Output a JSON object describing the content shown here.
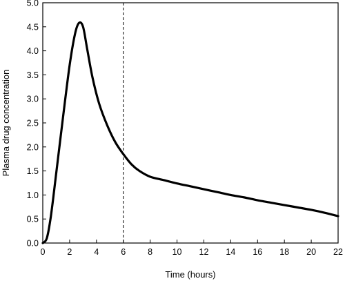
{
  "chart_data": {
    "type": "line",
    "title": "",
    "xlabel": "Time (hours)",
    "ylabel": "Plasma drug concentration",
    "xlim": [
      0,
      22
    ],
    "ylim": [
      0,
      5
    ],
    "xticks": [
      0,
      2,
      4,
      6,
      8,
      10,
      12,
      14,
      16,
      18,
      20,
      22
    ],
    "xtick_labels": [
      "0",
      "2",
      "4",
      "6",
      "8",
      "10",
      "12",
      "14",
      "16",
      "18",
      "20",
      "22"
    ],
    "yticks": [
      0,
      0.5,
      1,
      1.5,
      2,
      2.5,
      3,
      3.5,
      4,
      4.5,
      5
    ],
    "ytick_labels": [
      "0.0",
      "0.5",
      "1.0",
      "1.5",
      "2.0",
      "2.5",
      "3.0",
      "3.5",
      "4.0",
      "4.5",
      "5.0"
    ],
    "grid": false,
    "series": [
      {
        "x": [
          0,
          0.3,
          0.6,
          1.0,
          1.5,
          2.0,
          2.4,
          2.7,
          3.0,
          3.3,
          3.7,
          4.2,
          4.8,
          5.4,
          6.0,
          6.6,
          7.2,
          8.0,
          9.0,
          10.0,
          11.0,
          12.0,
          13.0,
          14.0,
          15.0,
          16.0,
          17.0,
          18.0,
          19.0,
          20.0,
          21.0,
          22.0
        ],
        "y": [
          0.0,
          0.1,
          0.55,
          1.45,
          2.6,
          3.7,
          4.35,
          4.58,
          4.5,
          4.05,
          3.45,
          2.9,
          2.45,
          2.1,
          1.85,
          1.64,
          1.5,
          1.38,
          1.31,
          1.24,
          1.18,
          1.12,
          1.06,
          1.0,
          0.95,
          0.89,
          0.84,
          0.79,
          0.74,
          0.69,
          0.63,
          0.56
        ]
      }
    ],
    "reference_lines": [
      {
        "axis": "x",
        "value": 6,
        "style": "dashed"
      }
    ]
  }
}
